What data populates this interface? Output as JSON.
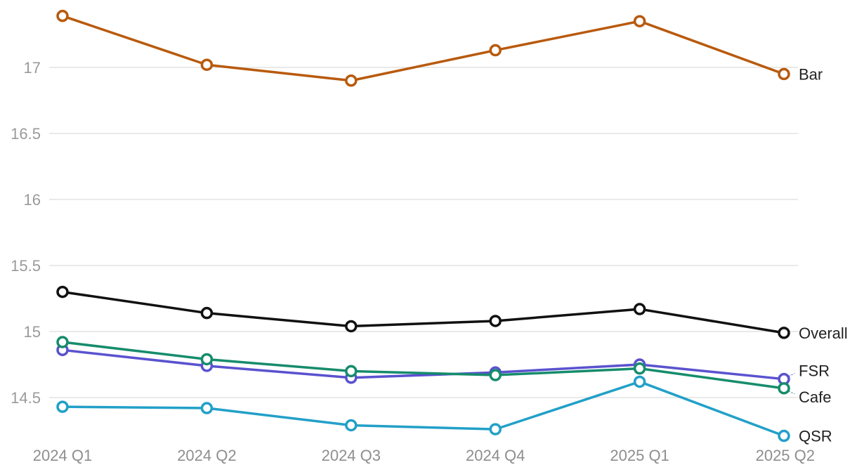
{
  "chart_data": {
    "type": "line",
    "title": "",
    "xlabel": "",
    "ylabel": "",
    "categories": [
      "2024 Q1",
      "2024 Q2",
      "2024 Q3",
      "2024 Q4",
      "2025 Q1",
      "2025 Q2"
    ],
    "y_ticks": [
      "14.5",
      "15",
      "15.5",
      "16",
      "16.5",
      "17"
    ],
    "ylim": [
      14.3,
      17.5
    ],
    "grid": true,
    "legend": "labels at line ends (right)",
    "series": [
      {
        "name": "Bar",
        "color": "#b85a0d",
        "values": [
          17.39,
          17.02,
          16.9,
          17.13,
          17.35,
          16.95
        ]
      },
      {
        "name": "Overall",
        "color": "#111111",
        "values": [
          15.3,
          15.14,
          15.04,
          15.08,
          15.17,
          14.99
        ]
      },
      {
        "name": "FSR",
        "color": "#5a52cf",
        "values": [
          14.86,
          14.74,
          14.65,
          14.69,
          14.75,
          14.64
        ]
      },
      {
        "name": "Cafe",
        "color": "#168c6c",
        "values": [
          14.92,
          14.79,
          14.7,
          14.67,
          14.72,
          14.57
        ]
      },
      {
        "name": "QSR",
        "color": "#22a0c8",
        "values": [
          14.43,
          14.42,
          14.29,
          14.26,
          14.62,
          14.21
        ]
      }
    ]
  }
}
